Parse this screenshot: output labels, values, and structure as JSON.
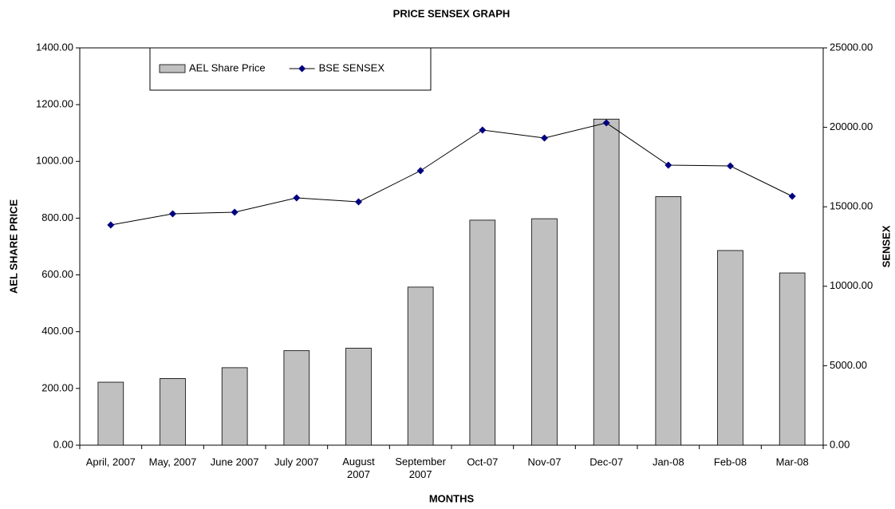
{
  "chart_data": {
    "type": "bar_line",
    "title": "PRICE SENSEX GRAPH",
    "x_label": "MONTHS",
    "y_label": "AEL SHARE PRICE",
    "y2_label": "SENSEX",
    "categories": [
      "April, 2007",
      "May, 2007",
      "June 2007",
      "July 2007",
      "August\n2007",
      "September\n2007",
      "Oct-07",
      "Nov-07",
      "Dec-07",
      "Jan-08",
      "Feb-08",
      "Mar-08"
    ],
    "series": [
      {
        "name": "AEL Share Price",
        "type": "bar",
        "color": "#c0c0c0",
        "values": [
          222,
          235,
          273,
          333,
          342,
          557,
          793,
          798,
          1149,
          876,
          686,
          607
        ]
      },
      {
        "name": "BSE SENSEX",
        "type": "line",
        "axis": "y2",
        "color": "#000080",
        "values": [
          13855,
          14558,
          14659,
          15562,
          15311,
          17269,
          19829,
          19327,
          20281,
          17620,
          17570,
          15663
        ]
      }
    ],
    "ylim": [
      0,
      1400
    ],
    "yticks": [
      {
        "value": 0,
        "label": "0.00"
      },
      {
        "value": 200,
        "label": "200.00"
      },
      {
        "value": 400,
        "label": "400.00"
      },
      {
        "value": 600,
        "label": "600.00"
      },
      {
        "value": 800,
        "label": "800.00"
      },
      {
        "value": 1000,
        "label": "1000.00"
      },
      {
        "value": 1200,
        "label": "1200.00"
      },
      {
        "value": 1400,
        "label": "1400.00"
      }
    ],
    "y2lim": [
      0,
      25000
    ],
    "y2ticks": [
      {
        "value": 0,
        "label": "0.00"
      },
      {
        "value": 5000,
        "label": "5000.00"
      },
      {
        "value": 10000,
        "label": "10000.00"
      },
      {
        "value": 15000,
        "label": "15000.00"
      },
      {
        "value": 20000,
        "label": "20000.00"
      },
      {
        "value": 25000,
        "label": "25000.00"
      }
    ],
    "legend": "top-left"
  }
}
